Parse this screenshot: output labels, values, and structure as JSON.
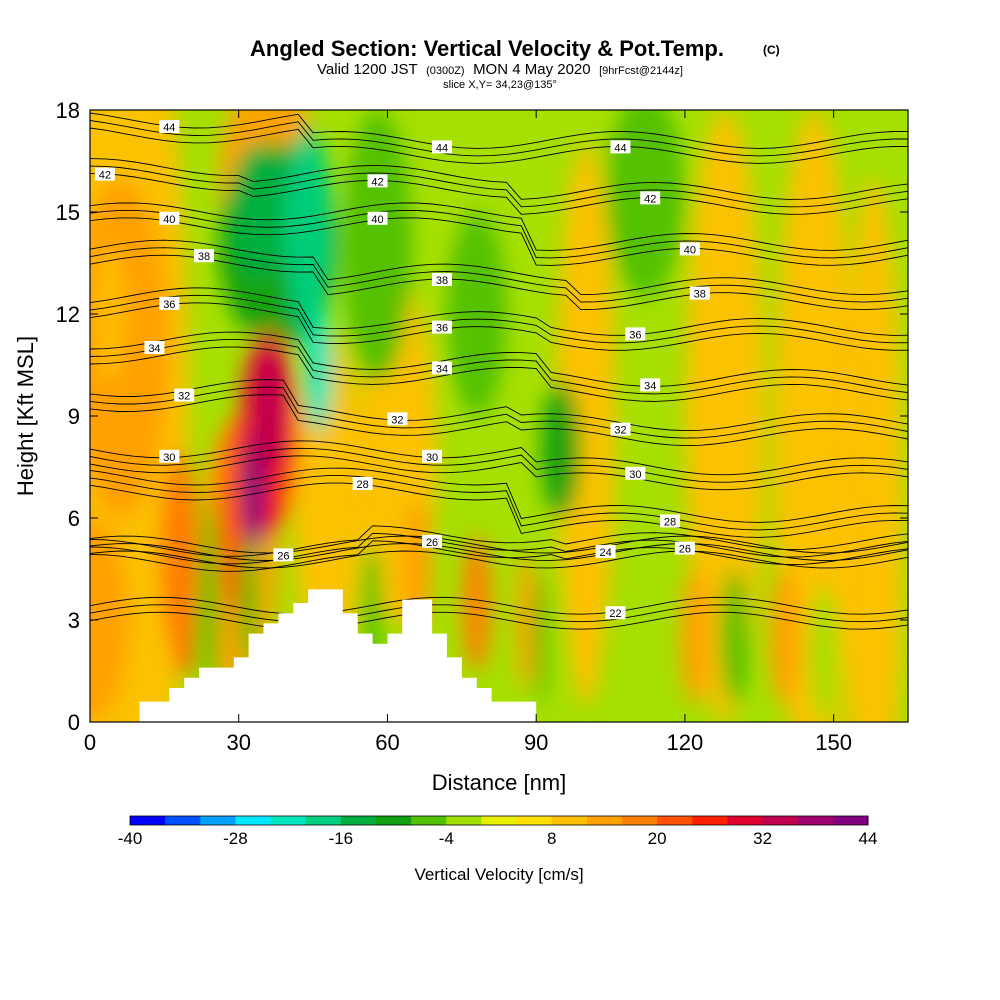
{
  "title": {
    "main": "Angled Section: Vertical Velocity & Pot.Temp.",
    "main_tag": "(C)",
    "valid_pre": "Valid 1200 JST",
    "valid_utc": "(0300Z)",
    "valid_date": "MON 4 May 2020",
    "valid_fcst": "[9hrFcst@2144z]",
    "slice": "slice X,Y= 34,23@135°"
  },
  "chart_data": {
    "type": "heatmap",
    "xlabel": "Distance [nm]",
    "ylabel": "Height [Kft MSL]",
    "xlim": [
      0,
      165
    ],
    "ylim": [
      0,
      18
    ],
    "xticks": [
      "0",
      "30",
      "60",
      "90",
      "120",
      "150"
    ],
    "xtick_values": [
      0,
      30,
      60,
      90,
      120,
      150
    ],
    "yticks": [
      "0",
      "3",
      "6",
      "9",
      "12",
      "15",
      "18"
    ],
    "ytick_values": [
      0,
      3,
      6,
      9,
      12,
      15,
      18
    ],
    "grid": false,
    "colorbar": {
      "title": "Vertical Velocity [cm/s]",
      "min": -40,
      "max": 44,
      "step": 4,
      "labels": [
        "-40",
        "-28",
        "-16",
        "-4",
        "8",
        "20",
        "32",
        "44"
      ],
      "label_values": [
        -40,
        -28,
        -16,
        -4,
        8,
        20,
        32,
        44
      ],
      "colors": [
        "#0000ff",
        "#0050ff",
        "#00a0ff",
        "#00e8ff",
        "#00e8c0",
        "#00d080",
        "#00b040",
        "#10a010",
        "#50c000",
        "#a0e000",
        "#e8f000",
        "#ffe000",
        "#ffc000",
        "#ffa000",
        "#ff8000",
        "#ff5000",
        "#ff2000",
        "#e00030",
        "#c00050",
        "#a00070",
        "#800080"
      ]
    },
    "terrain_nm_kft": [
      [
        10,
        0.6
      ],
      [
        16,
        0.6
      ],
      [
        16,
        1.0
      ],
      [
        19,
        1.0
      ],
      [
        19,
        1.3
      ],
      [
        22,
        1.3
      ],
      [
        22,
        1.6
      ],
      [
        29,
        1.6
      ],
      [
        29,
        1.9
      ],
      [
        32,
        1.9
      ],
      [
        32,
        2.6
      ],
      [
        35,
        2.6
      ],
      [
        35,
        2.9
      ],
      [
        38,
        2.9
      ],
      [
        38,
        3.2
      ],
      [
        41,
        3.2
      ],
      [
        41,
        3.5
      ],
      [
        44,
        3.5
      ],
      [
        44,
        3.9
      ],
      [
        51,
        3.9
      ],
      [
        51,
        3.2
      ],
      [
        54,
        3.2
      ],
      [
        54,
        2.6
      ],
      [
        57,
        2.6
      ],
      [
        57,
        2.3
      ],
      [
        60,
        2.3
      ],
      [
        60,
        2.6
      ],
      [
        63,
        2.6
      ],
      [
        63,
        3.6
      ],
      [
        69,
        3.6
      ],
      [
        69,
        2.6
      ],
      [
        72,
        2.6
      ],
      [
        72,
        1.9
      ],
      [
        75,
        1.9
      ],
      [
        75,
        1.3
      ],
      [
        78,
        1.3
      ],
      [
        78,
        1.0
      ],
      [
        81,
        1.0
      ],
      [
        81,
        0.6
      ],
      [
        90,
        0.6
      ]
    ],
    "theta_contours": [
      {
        "label": "22",
        "at": [
          [
            106,
            3.2
          ]
        ]
      },
      {
        "label": "24",
        "at": [
          [
            104,
            5.0
          ]
        ]
      },
      {
        "label": "26",
        "at": [
          [
            39,
            4.9
          ],
          [
            69,
            5.3
          ],
          [
            120,
            5.1
          ]
        ]
      },
      {
        "label": "28",
        "at": [
          [
            55,
            7.0
          ],
          [
            117,
            5.9
          ]
        ]
      },
      {
        "label": "30",
        "at": [
          [
            16,
            7.8
          ],
          [
            69,
            7.8
          ],
          [
            110,
            7.3
          ]
        ]
      },
      {
        "label": "32",
        "at": [
          [
            19,
            9.6
          ],
          [
            62,
            8.9
          ],
          [
            107,
            8.6
          ]
        ]
      },
      {
        "label": "34",
        "at": [
          [
            13,
            11.0
          ],
          [
            71,
            10.4
          ],
          [
            113,
            9.9
          ]
        ]
      },
      {
        "label": "36",
        "at": [
          [
            16,
            12.3
          ],
          [
            71,
            11.6
          ],
          [
            110,
            11.4
          ]
        ]
      },
      {
        "label": "38",
        "at": [
          [
            23,
            13.7
          ],
          [
            71,
            13.0
          ],
          [
            123,
            12.6
          ]
        ]
      },
      {
        "label": "40",
        "at": [
          [
            16,
            14.8
          ],
          [
            58,
            14.8
          ],
          [
            121,
            13.9
          ]
        ]
      },
      {
        "label": "42",
        "at": [
          [
            3,
            16.1
          ],
          [
            58,
            15.9
          ],
          [
            113,
            15.4
          ]
        ]
      },
      {
        "label": "44",
        "at": [
          [
            16,
            17.5
          ],
          [
            71,
            16.9
          ],
          [
            107,
            16.9
          ]
        ]
      }
    ]
  }
}
